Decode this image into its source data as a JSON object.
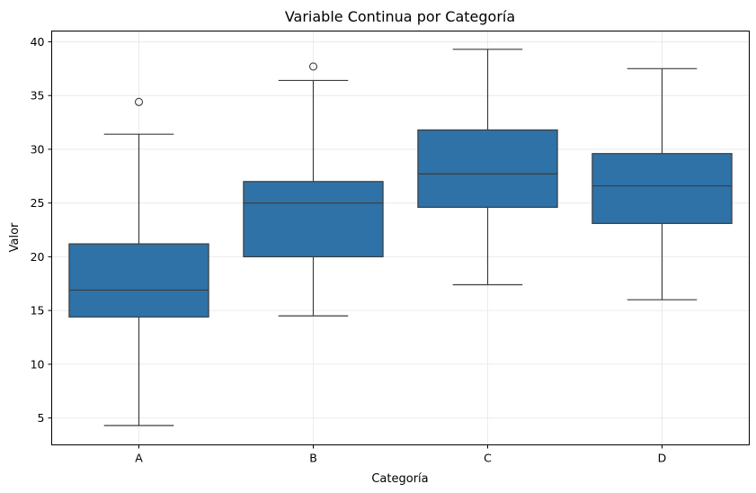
{
  "chart_data": {
    "type": "boxplot",
    "title": "Variable Continua por Categoría",
    "xlabel": "Categoría",
    "ylabel": "Valor",
    "categories": [
      "A",
      "B",
      "C",
      "D"
    ],
    "ylim": [
      2.5,
      41
    ],
    "yticks": [
      5,
      10,
      15,
      20,
      25,
      30,
      35,
      40
    ],
    "yticks_labels": [
      "5",
      "10",
      "15",
      "20",
      "25",
      "30",
      "35",
      "40"
    ],
    "grid": true,
    "boxes": [
      {
        "category": "A",
        "whisker_low": 4.3,
        "q1": 14.4,
        "median": 16.9,
        "q3": 21.2,
        "whisker_high": 31.4,
        "outliers": [
          34.4
        ]
      },
      {
        "category": "B",
        "whisker_low": 14.5,
        "q1": 20.0,
        "median": 25.0,
        "q3": 27.0,
        "whisker_high": 36.4,
        "outliers": [
          37.7
        ]
      },
      {
        "category": "C",
        "whisker_low": 17.4,
        "q1": 24.6,
        "median": 27.7,
        "q3": 31.8,
        "whisker_high": 39.3,
        "outliers": []
      },
      {
        "category": "D",
        "whisker_low": 16.0,
        "q1": 23.1,
        "median": 26.6,
        "q3": 29.6,
        "whisker_high": 37.5,
        "outliers": []
      }
    ],
    "colors": {
      "box_fill": "#2e72a7",
      "line": "#3d3d3d",
      "grid": "#e6e6e6",
      "axis": "#000000"
    }
  }
}
